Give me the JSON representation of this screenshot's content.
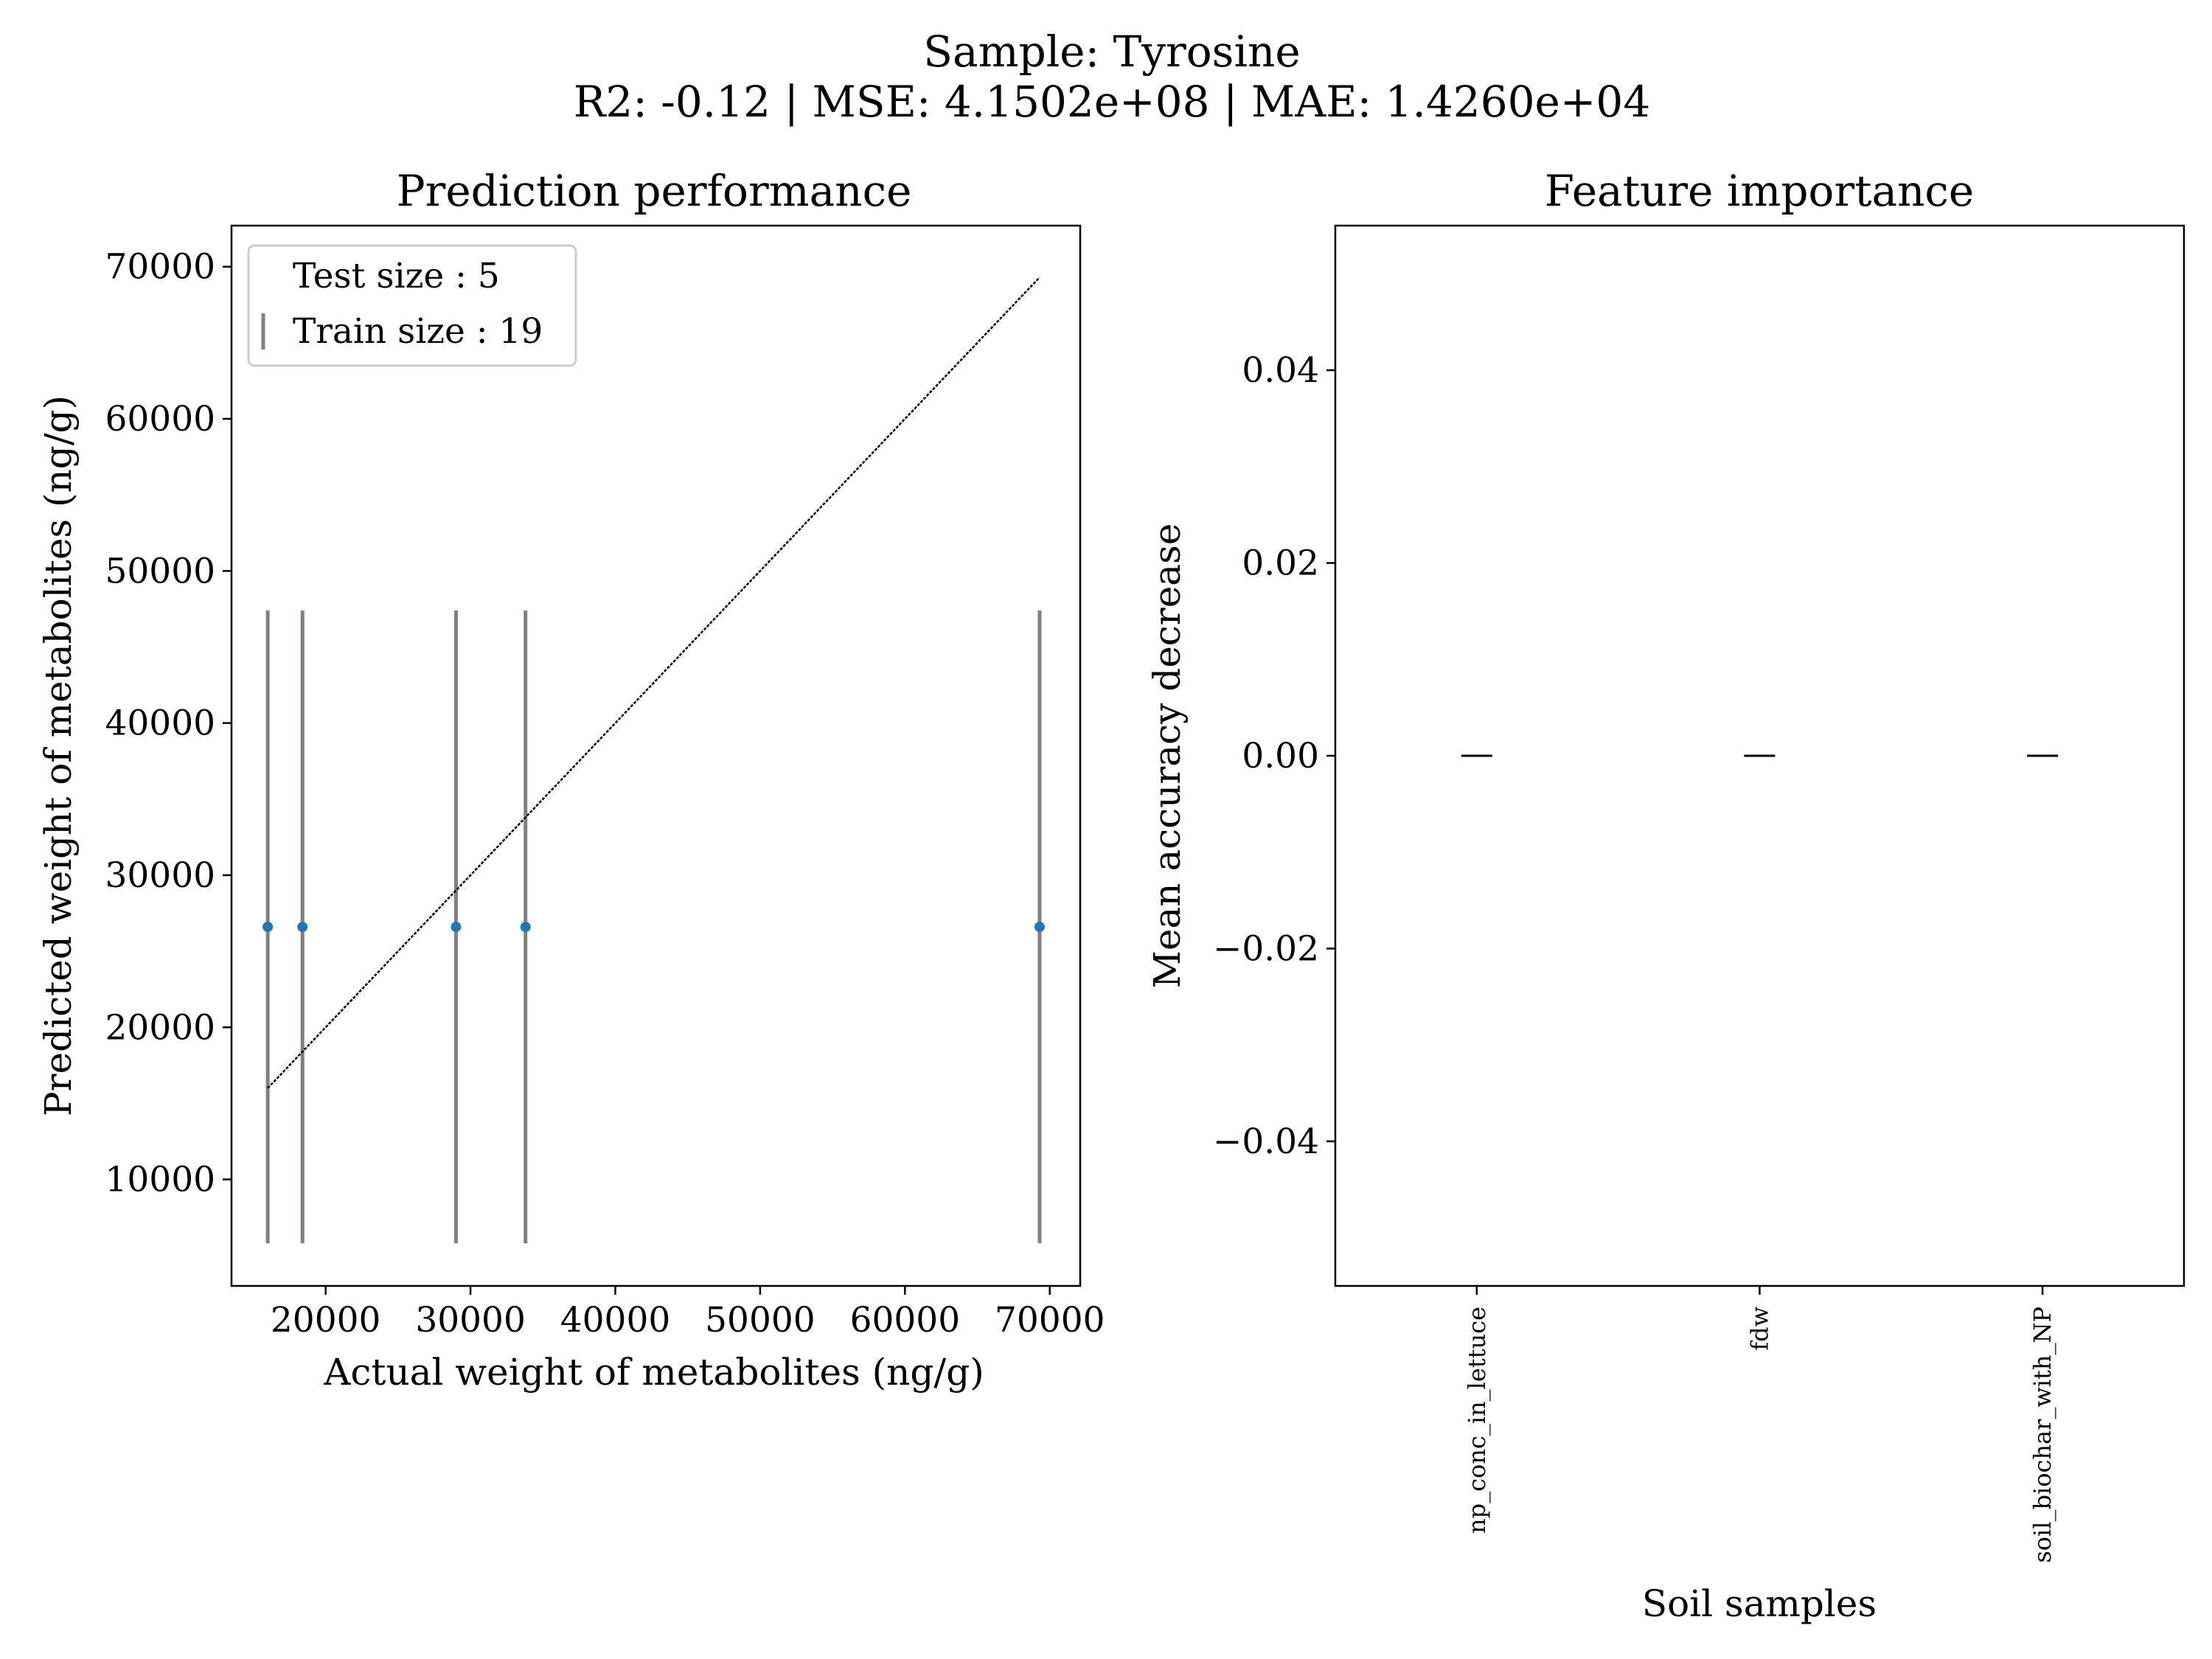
{
  "figure": {
    "title": "Sample: Tyrosine",
    "subtitle": "R2: -0.12 | MSE: 4.1502e+08 | MAE: 1.4260e+04"
  },
  "chart_data": [
    {
      "type": "scatter",
      "title": "Prediction performance",
      "xlabel": "Actual weight of metabolites (ng/g)",
      "ylabel": "Predicted weight of metabolites (ng/g)",
      "xlim": [
        13500,
        72100
      ],
      "ylim": [
        3000,
        72700
      ],
      "xticks": [
        20000,
        30000,
        40000,
        50000,
        60000,
        70000
      ],
      "yticks": [
        10000,
        20000,
        30000,
        40000,
        50000,
        60000,
        70000
      ],
      "grid": false,
      "legend": {
        "placement": "upper left",
        "entries": [
          "Test size : 5",
          "Train size : 19"
        ]
      },
      "x": [
        16000,
        18400,
        29000,
        33800,
        69300
      ],
      "y": [
        26600,
        26600,
        26600,
        26600,
        26600
      ],
      "error_low": [
        5800,
        5800,
        5800,
        5800,
        5800
      ],
      "error_high": [
        47400,
        47400,
        47400,
        47400,
        47400
      ],
      "reference_line": {
        "x": [
          16000,
          69300
        ],
        "y": [
          16000,
          69300
        ]
      },
      "colors": {
        "points": "#1f77b4",
        "errorbars": "#808080",
        "line": "#000000"
      }
    },
    {
      "type": "bar",
      "title": "Feature importance",
      "xlabel": "Soil samples",
      "ylabel": "Mean accuracy decrease",
      "categories": [
        "np_conc_in_lettuce",
        "fdw",
        "soil_biochar_with_NP"
      ],
      "values": [
        0.0,
        0.0,
        0.0
      ],
      "error": [
        0.0,
        0.0,
        0.0
      ],
      "ylim": [
        -0.055,
        0.055
      ],
      "yticks": [
        -0.04,
        -0.02,
        0.0,
        0.02,
        0.04
      ],
      "ytick_labels": [
        "−0.04",
        "−0.02",
        "0.00",
        "0.02",
        "0.04"
      ],
      "grid": false,
      "colors": {
        "bars": "#1f77b4",
        "errorbars": "#000000"
      }
    }
  ]
}
